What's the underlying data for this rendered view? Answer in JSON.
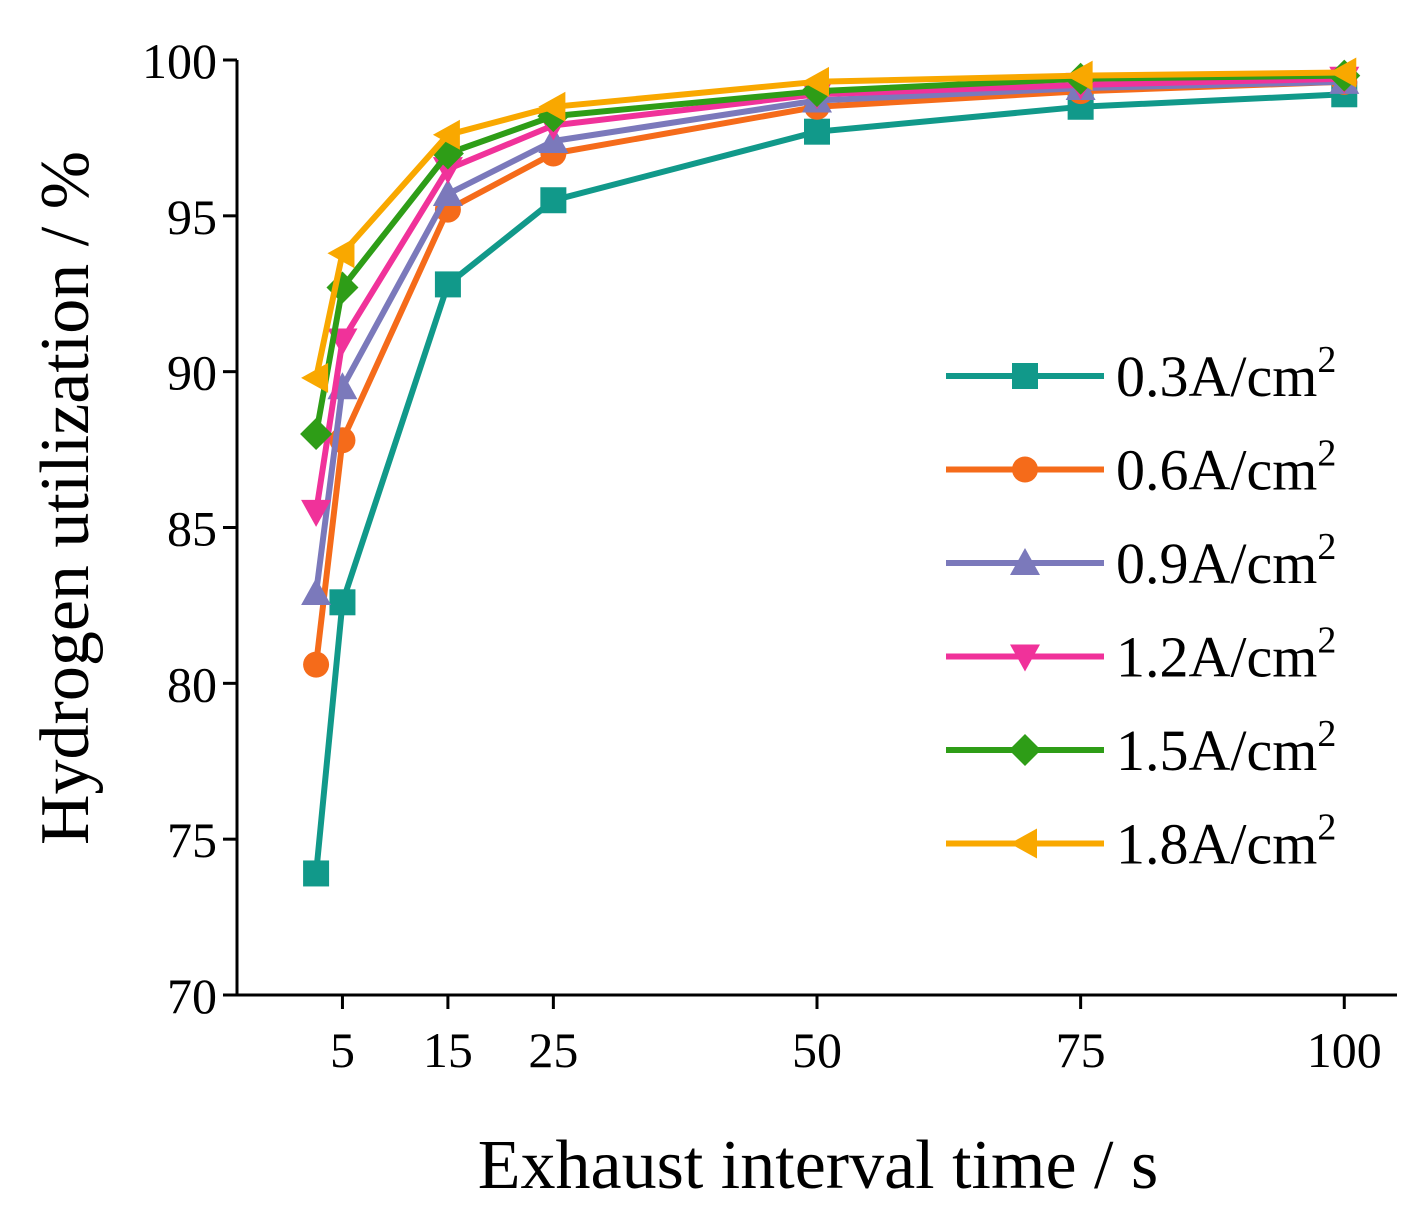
{
  "chart_data": {
    "type": "line",
    "title": "",
    "xlabel": "Exhaust interval time / s",
    "ylabel": "Hydrogen utilization / %",
    "xlim": [
      -5,
      105
    ],
    "ylim": [
      70,
      100
    ],
    "x_ticks": [
      5,
      15,
      25,
      50,
      75,
      100
    ],
    "x_tick_labels": [
      "5",
      "15",
      "25",
      "50",
      "75",
      "100"
    ],
    "y_ticks": [
      70,
      75,
      80,
      85,
      90,
      95,
      100
    ],
    "y_tick_labels": [
      "70",
      "75",
      "80",
      "85",
      "90",
      "95",
      "100"
    ],
    "grid": false,
    "legend_position": "right",
    "x": [
      2.5,
      5,
      15,
      25,
      50,
      75,
      100
    ],
    "series": [
      {
        "name": "0.3A/cm",
        "unit_exponent": "2",
        "color": "#11998a",
        "marker": "square",
        "values": [
          73.9,
          82.6,
          92.8,
          95.5,
          97.7,
          98.5,
          98.9
        ]
      },
      {
        "name": "0.6A/cm",
        "unit_exponent": "2",
        "color": "#f56b1a",
        "marker": "circle",
        "values": [
          80.6,
          87.8,
          95.2,
          97.0,
          98.5,
          99.0,
          99.3
        ]
      },
      {
        "name": "0.9A/cm",
        "unit_exponent": "2",
        "color": "#7b79bb",
        "marker": "triangle-up",
        "values": [
          82.9,
          89.5,
          95.7,
          97.4,
          98.7,
          99.1,
          99.3
        ]
      },
      {
        "name": "1.2A/cm",
        "unit_exponent": "2",
        "color": "#f0329a",
        "marker": "triangle-down",
        "values": [
          85.5,
          91.0,
          96.5,
          97.9,
          98.9,
          99.2,
          99.4
        ]
      },
      {
        "name": "1.5A/cm",
        "unit_exponent": "2",
        "color": "#2e9d17",
        "marker": "diamond",
        "values": [
          88.0,
          92.7,
          97.0,
          98.2,
          99.0,
          99.4,
          99.5
        ]
      },
      {
        "name": "1.8A/cm",
        "unit_exponent": "2",
        "color": "#f9a800",
        "marker": "triangle-left",
        "values": [
          89.8,
          93.8,
          97.6,
          98.5,
          99.3,
          99.5,
          99.6
        ]
      }
    ]
  }
}
